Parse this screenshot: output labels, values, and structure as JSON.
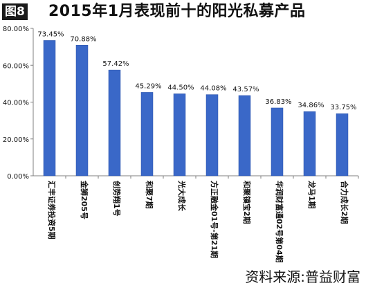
{
  "figure_label": "图8",
  "source_note": "资料来源:普益财富",
  "colors": {
    "bar": "#3a68c8",
    "bar_edge": "#2b52a8",
    "axis": "#7f7f7f",
    "text": "#111111"
  },
  "chart_data": {
    "type": "bar",
    "title": "2015年1月表现前十的阳光私募产品",
    "xlabel": "",
    "ylabel": "",
    "ylim": [
      0,
      80
    ],
    "yticks": [
      "0.00%",
      "20.00%",
      "40.00%",
      "60.00%",
      "80.00%"
    ],
    "ytick_values": [
      0,
      20,
      40,
      60,
      80
    ],
    "grid": false,
    "categories": [
      "汇丰证券投资5期",
      "金狮205号",
      "创势翔1号",
      "和聚7期",
      "光大成长",
      "方正融金01号-第21期",
      "和聚镇宝2期",
      "华润财富通02号第04期",
      "龙马1期",
      "合力成长2期"
    ],
    "values": [
      73.45,
      70.88,
      57.42,
      45.29,
      44.5,
      44.08,
      43.57,
      36.83,
      34.86,
      33.75
    ],
    "data_labels": [
      "73.45%",
      "70.88%",
      "57.42%",
      "45.29%",
      "44.50%",
      "44.08%",
      "43.57%",
      "36.83%",
      "34.86%",
      "33.75%"
    ]
  }
}
